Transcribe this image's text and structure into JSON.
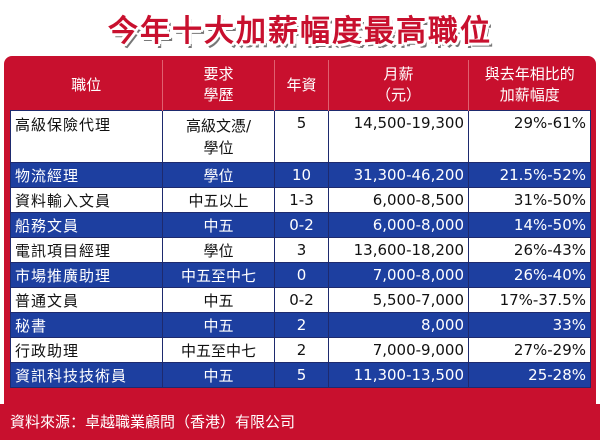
{
  "title": "今年十大加薪幅度最高職位",
  "headers": {
    "position": "職位",
    "requirement": "要求\n學歷",
    "years": "年資",
    "salary": "月薪\n（元）",
    "raise": "與去年相比的\n加薪幅度"
  },
  "rows": [
    {
      "position": "高級保險代理",
      "requirement": "高級文憑/\n學位",
      "years": "5",
      "salary": "14,500-19,300",
      "raise": "29%-61%"
    },
    {
      "position": "物流經理",
      "requirement": "學位",
      "years": "10",
      "salary": "31,300-46,200",
      "raise": "21.5%-52%"
    },
    {
      "position": "資料輸入文員",
      "requirement": "中五以上",
      "years": "1-3",
      "salary": "6,000-8,500",
      "raise": "31%-50%"
    },
    {
      "position": "船務文員",
      "requirement": "中五",
      "years": "0-2",
      "salary": "6,000-8,000",
      "raise": "14%-50%"
    },
    {
      "position": "電訊項目經理",
      "requirement": "學位",
      "years": "3",
      "salary": "13,600-18,200",
      "raise": "26%-43%"
    },
    {
      "position": "市場推廣助理",
      "requirement": "中五至中七",
      "years": "0",
      "salary": "7,000-8,000",
      "raise": "26%-40%"
    },
    {
      "position": "普通文員",
      "requirement": "中五",
      "years": "0-2",
      "salary": "5,500-7,000",
      "raise": "17%-37.5%"
    },
    {
      "position": "秘書",
      "requirement": "中五",
      "years": "2",
      "salary": "8,000",
      "raise": "33%"
    },
    {
      "position": "行政助理",
      "requirement": "中五至中七",
      "years": "2",
      "salary": "7,000-9,000",
      "raise": "27%-29%"
    },
    {
      "position": "資訊科技技術員",
      "requirement": "中五",
      "years": "5",
      "salary": "11,300-13,500",
      "raise": "25-28%"
    }
  ],
  "row_styles": [
    "white",
    "blue",
    "white",
    "blue",
    "white",
    "blue",
    "white",
    "blue",
    "white",
    "blue"
  ],
  "footer": "資料來源：卓越職業顧問（香港）有限公司",
  "colors": {
    "header_red": "#c8102e",
    "row_blue": "#1d3fa0",
    "row_white": "#ffffff"
  }
}
